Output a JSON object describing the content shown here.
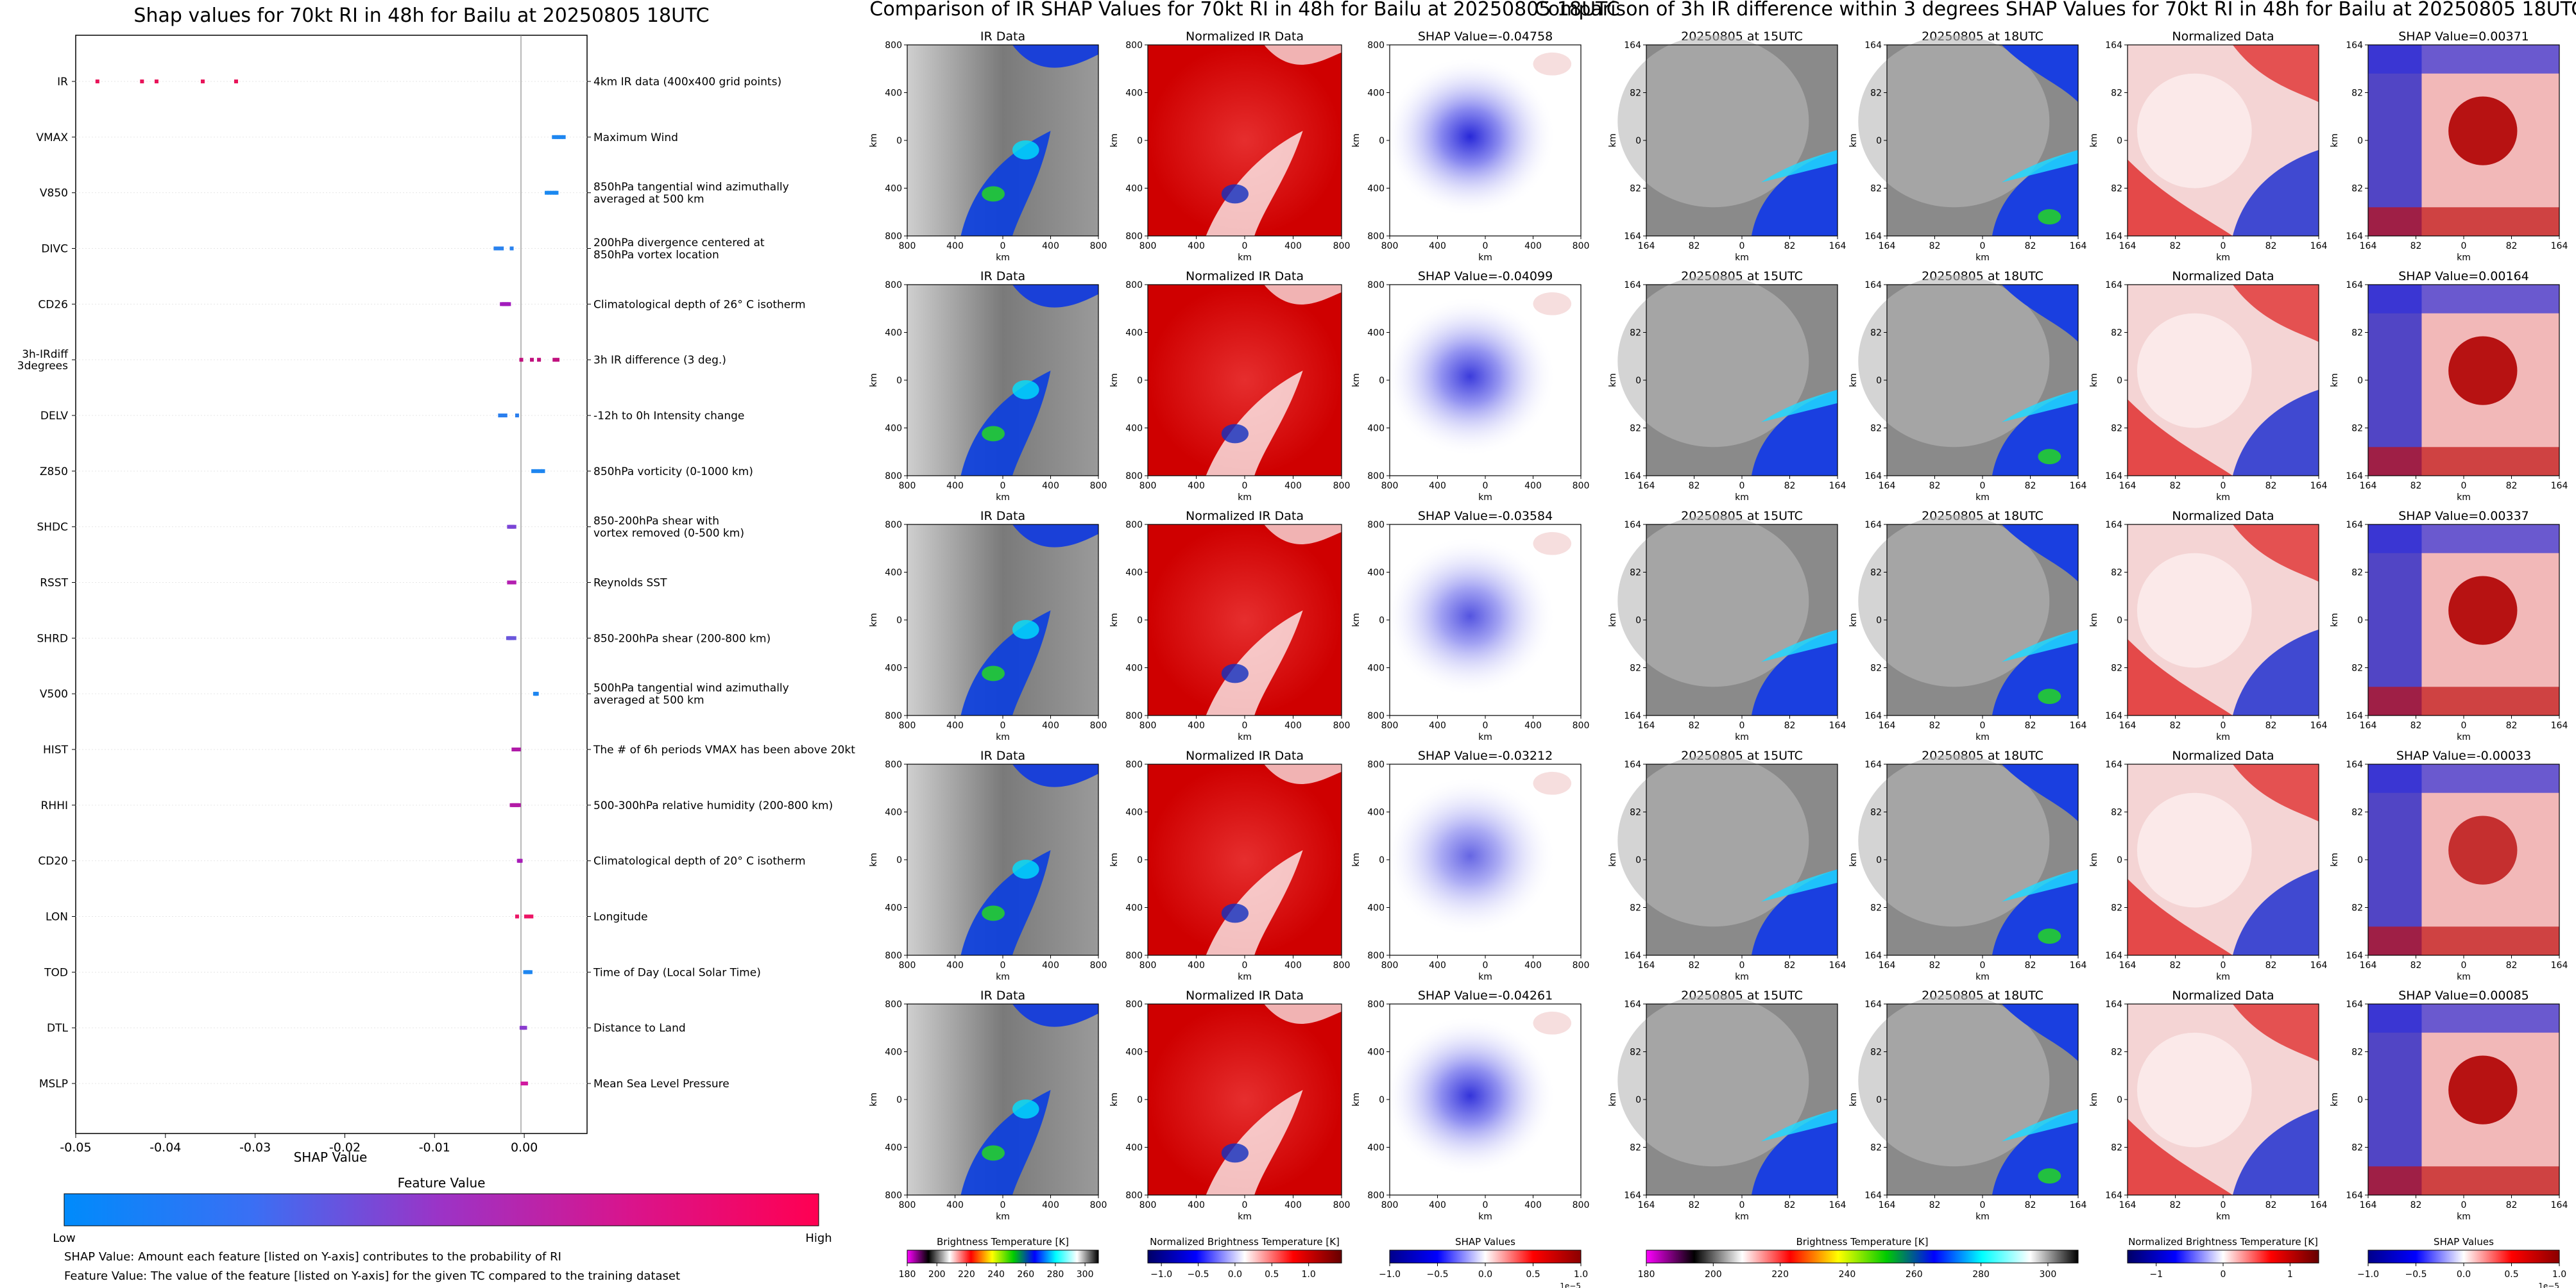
{
  "chart_data": [
    {
      "type": "scatter",
      "title": "Shap values for 70kt RI in 48h for Bailu at 20250805 18UTC",
      "xlabel": "SHAP Value",
      "ylabel": "",
      "xlim": [
        -0.05,
        0.007
      ],
      "x_ticks": [
        "-0.05",
        "-0.04",
        "-0.03",
        "-0.02",
        "-0.01",
        "0.00"
      ],
      "x_tick_values": [
        -0.05,
        -0.04,
        -0.03,
        -0.02,
        -0.01,
        0.0
      ],
      "grid": false,
      "features": [
        {
          "name": "IR",
          "description": "4km IR data (400x400 grid points)",
          "shap": [
            -0.04758,
            -0.04261,
            -0.04099,
            -0.03584,
            -0.03212
          ],
          "color": "#e8145a"
        },
        {
          "name": "VMAX",
          "description": "Maximum Wind",
          "shap": [
            0.0033,
            0.0036,
            0.0038,
            0.0041,
            0.0044
          ],
          "color": "#1e86f0"
        },
        {
          "name": "V850",
          "description": "850hPa tangential wind azimuthally\naveraged at 500 km",
          "shap": [
            0.0025,
            0.0028,
            0.0031,
            0.0034,
            0.0036
          ],
          "color": "#1a88f0"
        },
        {
          "name": "DIVC",
          "description": "200hPa divergence centered at\n850hPa vortex location",
          "shap": [
            -0.0032,
            -0.0029,
            -0.0027,
            -0.0025,
            -0.0014
          ],
          "color": "#2a82ee"
        },
        {
          "name": "CD26",
          "description": "Climatological depth of 26° C isotherm",
          "shap": [
            -0.0025,
            -0.0023,
            -0.0021,
            -0.0019,
            -0.0017
          ],
          "color": "#a21bbc"
        },
        {
          "name": "3h-IRdiff\n3degrees",
          "description": "3h IR difference (3 deg.)",
          "shap": [
            -0.00033,
            0.00085,
            0.00164,
            0.00337,
            0.00371
          ],
          "color": "#c0117e"
        },
        {
          "name": "DELV",
          "description": "-12h to 0h Intensity change",
          "shap": [
            -0.0027,
            -0.0025,
            -0.0023,
            -0.0021,
            -0.0008
          ],
          "color": "#2b7fee"
        },
        {
          "name": "Z850",
          "description": "850hPa vorticity (0-1000 km)",
          "shap": [
            0.001,
            0.0014,
            0.0018,
            0.0021
          ],
          "color": "#1e86f0"
        },
        {
          "name": "SHDC",
          "description": "850-200hPa shear with\nvortex removed (0-500 km)",
          "shap": [
            -0.0017,
            -0.0015,
            -0.0013,
            -0.0011
          ],
          "color": "#7a44d6"
        },
        {
          "name": "RSST",
          "description": "Reynolds SST",
          "shap": [
            -0.0017,
            -0.0015,
            -0.0013,
            -0.0011
          ],
          "color": "#b31eb0"
        },
        {
          "name": "SHRD",
          "description": "850-200hPa shear (200-800 km)",
          "shap": [
            -0.0018,
            -0.0016,
            -0.0014,
            -0.0011
          ],
          "color": "#6a56dc"
        },
        {
          "name": "V500",
          "description": "500hPa tangential wind azimuthally\naveraged at 500 km",
          "shap": [
            0.0012,
            0.0013,
            0.0014
          ],
          "color": "#1e86f0"
        },
        {
          "name": "HIST",
          "description": "The # of 6h periods VMAX has been above 20kt",
          "shap": [
            -0.0012,
            -0.001,
            -0.0008,
            -0.0006
          ],
          "color": "#b01aa8"
        },
        {
          "name": "RHHI",
          "description": "500-300hPa relative humidity (200-800 km)",
          "shap": [
            -0.0014,
            -0.0012,
            -0.001,
            -0.0008,
            -0.0006
          ],
          "color": "#b31aa6"
        },
        {
          "name": "CD20",
          "description": "Climatological depth of 20° C isotherm",
          "shap": [
            -0.0006,
            -0.0005,
            -0.0004
          ],
          "color": "#a81bb8"
        },
        {
          "name": "LON",
          "description": "Longitude",
          "shap": [
            -0.0008,
            0.0002,
            0.0005,
            0.0008
          ],
          "color": "#ec1565"
        },
        {
          "name": "TOD",
          "description": "Time of Day (Local Solar Time)",
          "shap": [
            0.0001,
            0.0003,
            0.0005,
            0.0007
          ],
          "color": "#1e86f0"
        },
        {
          "name": "DTL",
          "description": "Distance to Land",
          "shap": [
            -0.0003,
            -0.0001,
            0.0001
          ],
          "color": "#8a3ccf"
        },
        {
          "name": "MSLP",
          "description": "Mean Sea Level Pressure",
          "shap": [
            -0.0002,
            0.0,
            0.0002
          ],
          "color": "#d01aa0"
        }
      ],
      "colorbar": {
        "title": "Feature Value",
        "low": "Low",
        "high": "High",
        "colors": [
          "#008bfb",
          "#3a6ff4",
          "#9c33c6",
          "#d9148c",
          "#ff0052"
        ]
      },
      "notes": [
        "SHAP Value: Amount each feature [listed on Y-axis] contributes to the probability of RI",
        "Feature Value: The value of the feature [listed on Y-axis] for the given TC compared to the training dataset"
      ]
    },
    {
      "type": "heatmap",
      "title": "Comparison of IR SHAP Values for 70kt RI in 48h for Bailu at 20250805 18UTC",
      "columns": [
        "IR Data",
        "Normalized IR Data"
      ],
      "shap_titles": [
        "SHAP Value=-0.04758",
        "SHAP Value=-0.04099",
        "SHAP Value=-0.03584",
        "SHAP Value=-0.03212",
        "SHAP Value=-0.04261"
      ],
      "shap_values": [
        -0.04758,
        -0.04099,
        -0.03584,
        -0.03212,
        -0.04261
      ],
      "axis_ticks": [
        "800",
        "400",
        "0",
        "400",
        "800"
      ],
      "axis_label": "km",
      "colorbars": [
        {
          "label": "Brightness Temperature [K]",
          "ticks": [
            "180",
            "200",
            "220",
            "240",
            "260",
            "280",
            "300"
          ]
        },
        {
          "label": "Normalized Brightness Temperature [K]",
          "ticks": [
            "−1.0",
            "−0.5",
            "0.0",
            "0.5",
            "1.0"
          ]
        },
        {
          "label": "SHAP Values",
          "ticks": [
            "−1.0",
            "−0.5",
            "0.0",
            "0.5",
            "1.0"
          ],
          "offset": "1e−5"
        }
      ]
    },
    {
      "type": "heatmap",
      "title": "Comparison of 3h IR difference within 3 degrees SHAP Values for 70kt RI in 48h for Bailu at 20250805 18UTC",
      "columns": [
        "20250805 at 15UTC",
        "20250805 at 18UTC",
        "Normalized Data"
      ],
      "shap_titles": [
        "SHAP Value=0.00371",
        "SHAP Value=0.00164",
        "SHAP Value=0.00337",
        "SHAP Value=-0.00033",
        "SHAP Value=0.00085"
      ],
      "shap_values": [
        0.00371,
        0.00164,
        0.00337,
        -0.00033,
        0.00085
      ],
      "axis_ticks": [
        "164",
        "82",
        "0",
        "82",
        "164"
      ],
      "axis_label": "km",
      "colorbars": [
        {
          "label": "Brightness Temperature [K]",
          "ticks": [
            "180",
            "200",
            "220",
            "240",
            "260",
            "280",
            "300"
          ]
        },
        {
          "label": "Normalized Brightness Temperature [K]",
          "ticks": [
            "−1",
            "0",
            "1"
          ]
        },
        {
          "label": "SHAP Values",
          "ticks": [
            "−1.0",
            "−0.5",
            "0.0",
            "0.5",
            "1.0"
          ],
          "offset": "1e−5"
        }
      ]
    }
  ],
  "colors": {
    "bt_scale": [
      "#ff00ff",
      "#000000",
      "#ffffff",
      "#ff0000",
      "#ffff00",
      "#00cc00",
      "#0000ff",
      "#00ffff",
      "#ffffff",
      "#000000"
    ],
    "norm_scale": [
      "#000066",
      "#0000ff",
      "#ffffff",
      "#ff0000",
      "#660000"
    ],
    "shap_scale": [
      "#00008b",
      "#0000ff",
      "#ffffff",
      "#ff0000",
      "#8b0000"
    ]
  }
}
